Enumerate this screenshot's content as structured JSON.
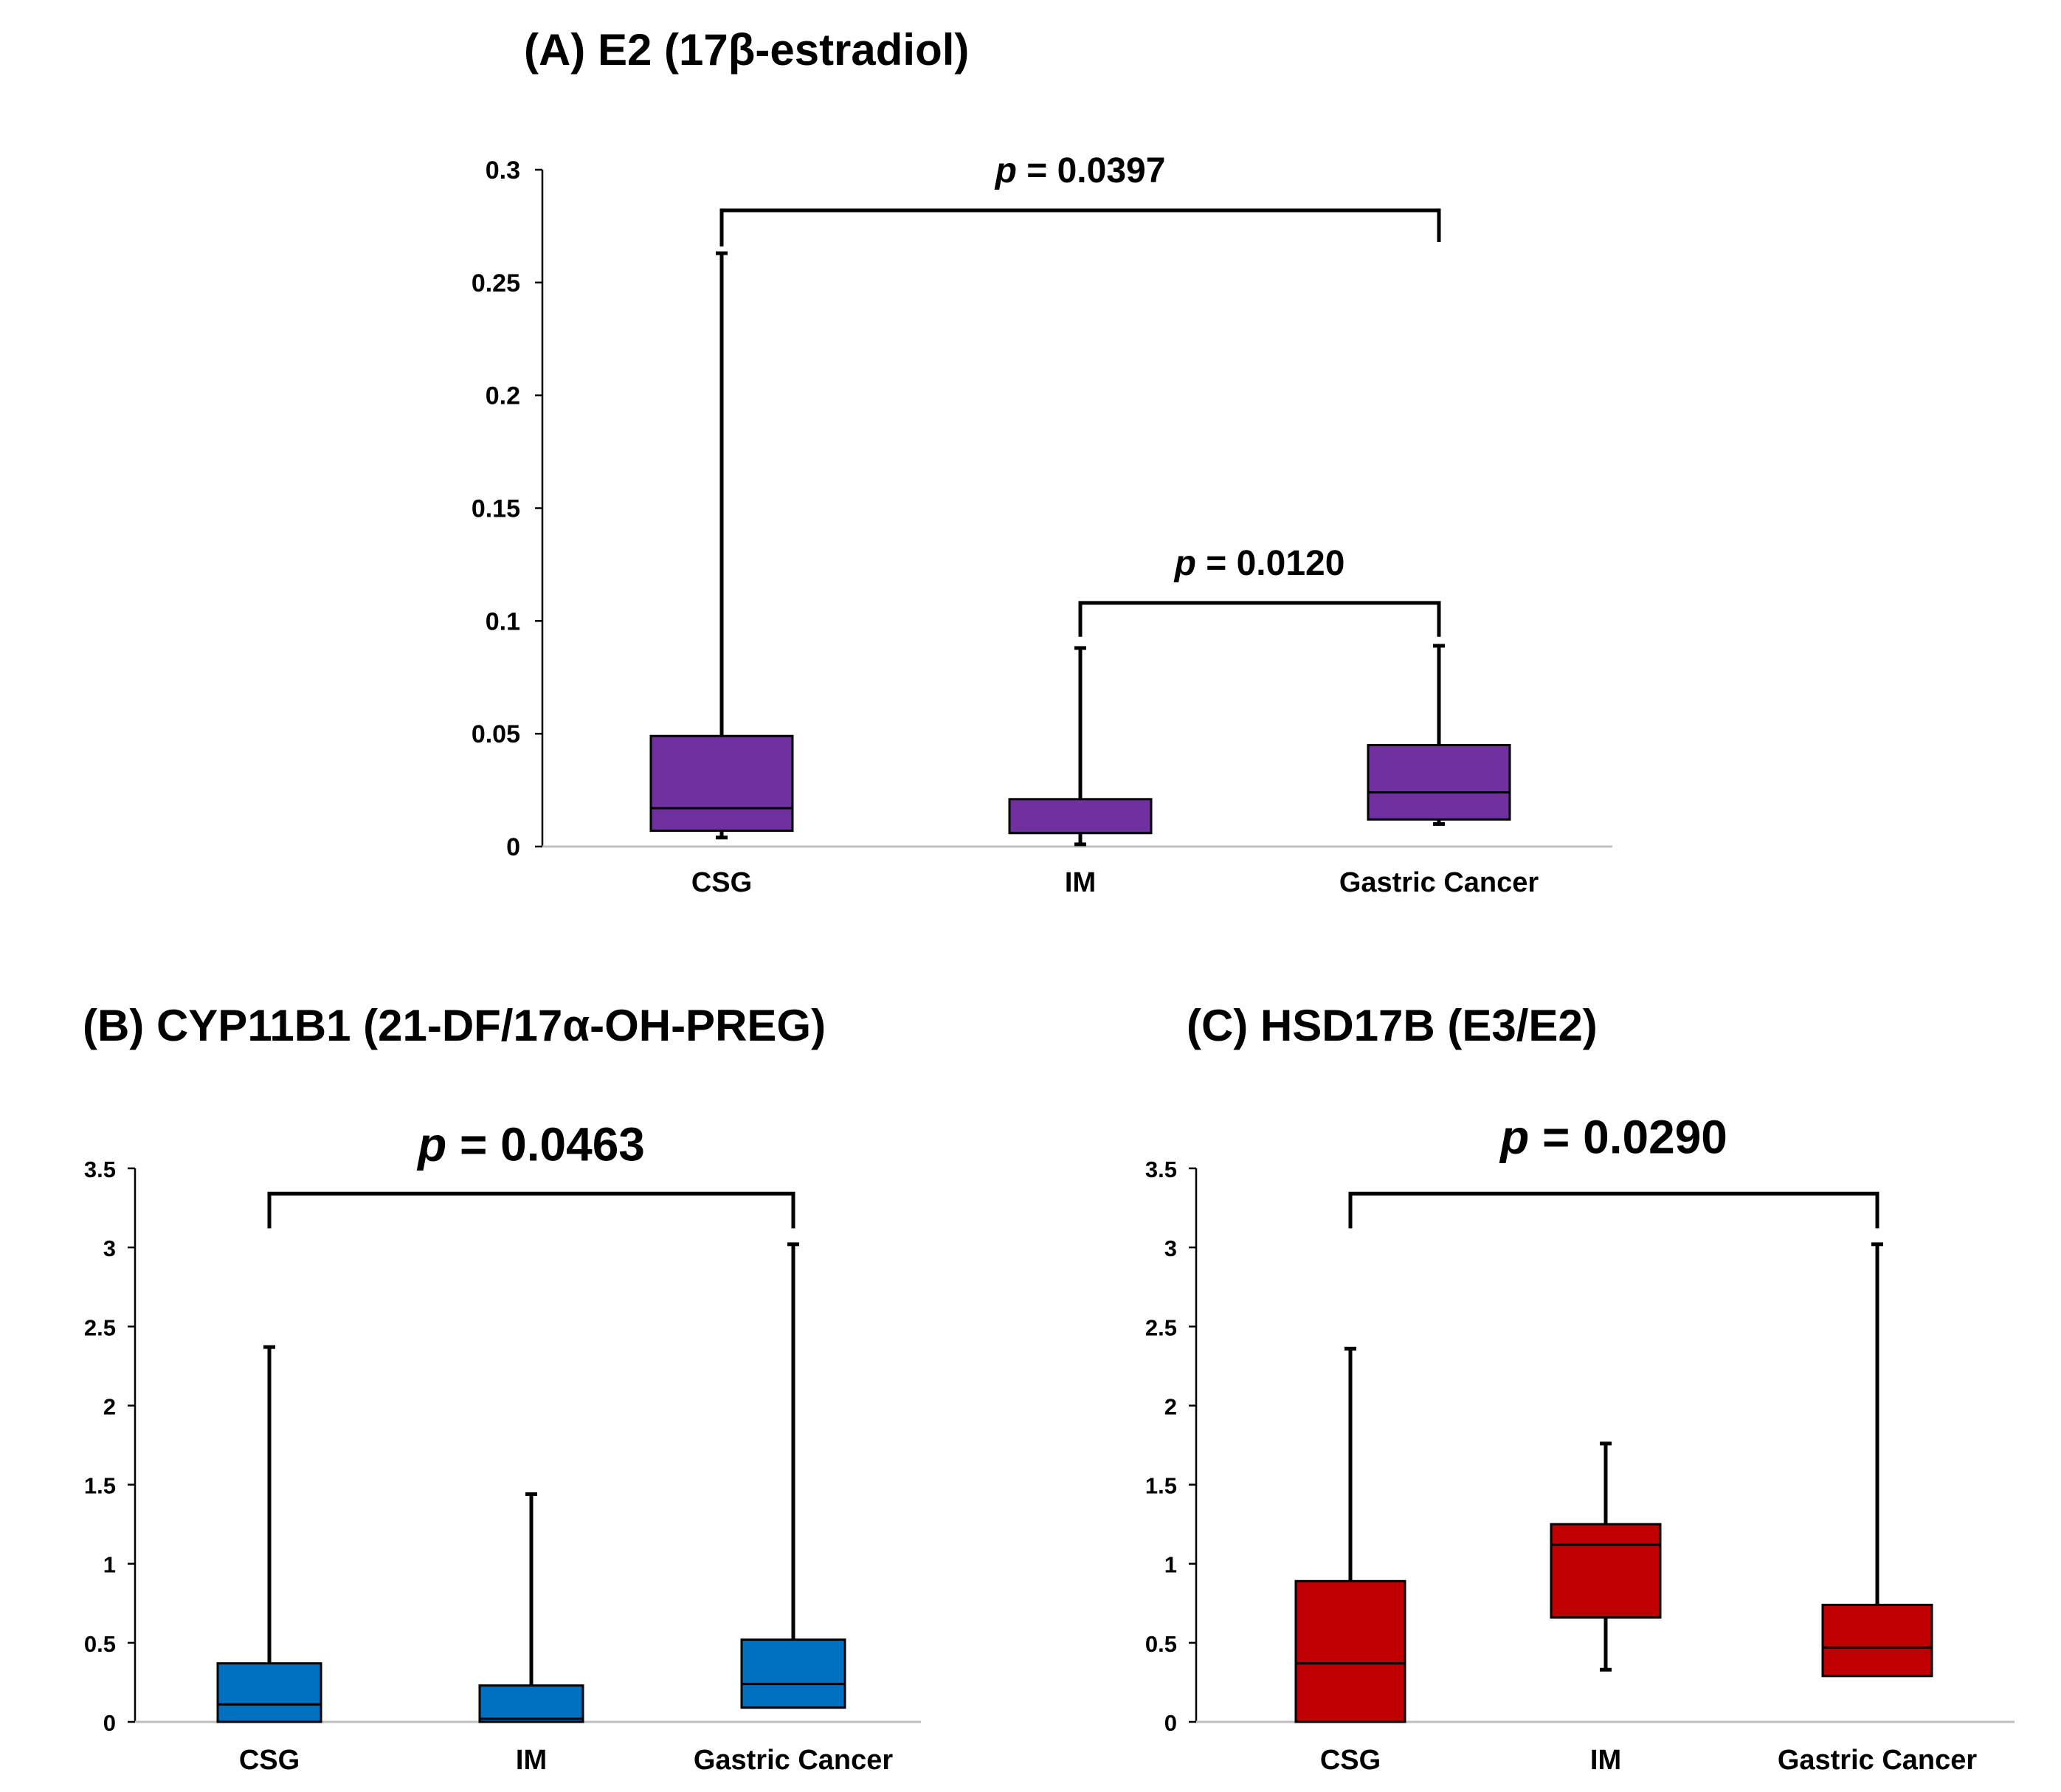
{
  "chart_data": [
    {
      "id": "A",
      "type": "box",
      "title": "(A) E2 (17β-estradiol)",
      "categories": [
        "CSG",
        "IM",
        "Gastric Cancer"
      ],
      "color": "#7030A0",
      "ylim": [
        0,
        0.3
      ],
      "yticks": [
        "0",
        "0.05",
        "0.1",
        "0.15",
        "0.2",
        "0.25",
        "0.3"
      ],
      "tickvals": [
        0,
        0.05,
        0.1,
        0.15,
        0.2,
        0.25,
        0.3
      ],
      "boxes": [
        {
          "min": 0.004,
          "q1": 0.007,
          "median": 0.017,
          "q3": 0.049,
          "max": 0.263
        },
        {
          "min": 0.001,
          "q1": 0.006,
          "median": 0.006,
          "q3": 0.021,
          "max": 0.088
        },
        {
          "min": 0.01,
          "q1": 0.012,
          "median": 0.024,
          "q3": 0.045,
          "max": 0.089
        }
      ],
      "comparisons": [
        {
          "from": 0,
          "to": 2,
          "prefix": "p",
          "label": " = 0.0397",
          "y": 0.282,
          "leg_left": 0.266,
          "leg_right": 0.268
        },
        {
          "from": 1,
          "to": 2,
          "prefix": "p",
          "label": " = 0.0120",
          "y": 0.108,
          "leg_left": 0.093,
          "leg_right": 0.093
        }
      ]
    },
    {
      "id": "B",
      "type": "box",
      "title": "(B) CYP11B1 (21-DF/17α-OH-PREG)",
      "categories": [
        "CSG",
        "IM",
        "Gastric Cancer"
      ],
      "color": "#0070C0",
      "ylim": [
        0,
        3.5
      ],
      "yticks": [
        "0",
        "0.5",
        "1",
        "1.5",
        "2",
        "2.5",
        "3",
        "3.5"
      ],
      "tickvals": [
        0,
        0.5,
        1,
        1.5,
        2,
        2.5,
        3,
        3.5
      ],
      "boxes": [
        {
          "min": 0,
          "q1": 0.0,
          "median": 0.11,
          "q3": 0.37,
          "max": 2.37
        },
        {
          "min": 0,
          "q1": 0.0,
          "median": 0.02,
          "q3": 0.23,
          "max": 1.44
        },
        {
          "min": 0.09,
          "q1": 0.09,
          "median": 0.24,
          "q3": 0.52,
          "max": 3.02
        }
      ],
      "comparisons": [
        {
          "from": 0,
          "to": 2,
          "prefix": "p",
          "label": " = 0.0463",
          "y": 3.34,
          "leg_left": 3.12,
          "leg_right": 3.12
        }
      ]
    },
    {
      "id": "C",
      "type": "box",
      "title": "(C) HSD17B (E3/E2)",
      "categories": [
        "CSG",
        "IM",
        "Gastric Cancer"
      ],
      "color": "#C00000",
      "ylim": [
        0,
        3.5
      ],
      "yticks": [
        "0",
        "0.5",
        "1",
        "1.5",
        "2",
        "2.5",
        "3",
        "3.5"
      ],
      "tickvals": [
        0,
        0.5,
        1,
        1.5,
        2,
        2.5,
        3,
        3.5
      ],
      "boxes": [
        {
          "min": 0,
          "q1": 0.0,
          "median": 0.37,
          "q3": 0.89,
          "max": 2.36
        },
        {
          "min": 0.33,
          "q1": 0.66,
          "median": 1.12,
          "q3": 1.25,
          "max": 1.76
        },
        {
          "min": 0.29,
          "q1": 0.29,
          "median": 0.47,
          "q3": 0.74,
          "max": 3.02
        }
      ],
      "comparisons": [
        {
          "from": 0,
          "to": 2,
          "prefix": "p",
          "label": " = 0.0290",
          "y": 3.34,
          "leg_left": 3.12,
          "leg_right": 3.12
        }
      ]
    }
  ]
}
